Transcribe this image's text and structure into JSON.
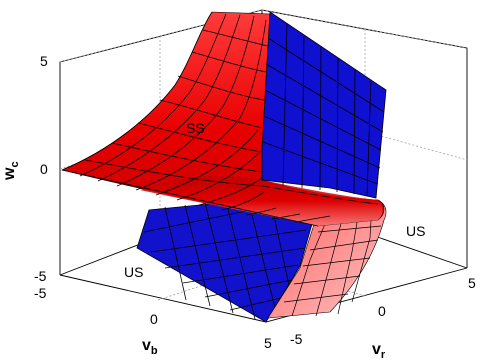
{
  "chart_data": {
    "type": "surface3d",
    "title": "",
    "axes": {
      "x": {
        "symbol": "v",
        "subscript": "b",
        "ticks": [
          "-5",
          "0",
          "5"
        ],
        "range": [
          -5,
          5
        ]
      },
      "y": {
        "symbol": "v",
        "subscript": "r",
        "ticks": [
          "-5",
          "0",
          "5"
        ],
        "range": [
          -5,
          5
        ]
      },
      "z": {
        "symbol": "w",
        "subscript": "c",
        "ticks": [
          "-5",
          "0",
          "5"
        ],
        "range": [
          -5,
          5
        ]
      }
    },
    "grid": true,
    "surfaces": [
      {
        "color": "#ff2020",
        "description": "red surface with black mesh lines"
      },
      {
        "color": "#1010d0",
        "description": "blue plane with black mesh lines"
      }
    ],
    "region_labels": [
      {
        "text": "SS"
      },
      {
        "text": "US"
      },
      {
        "text": "US"
      }
    ]
  }
}
